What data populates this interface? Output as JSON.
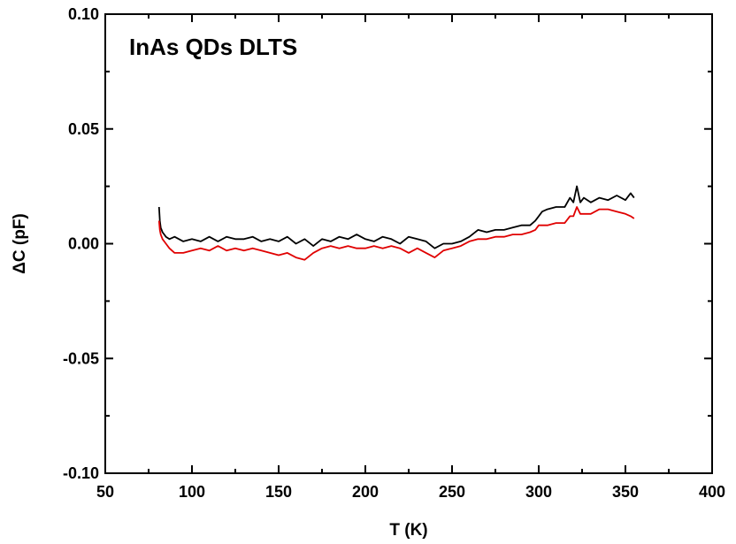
{
  "chart_data": {
    "type": "line",
    "title": "InAs QDs DLTS",
    "xlabel": "T (K)",
    "ylabel": "ΔC (pF)",
    "xlim": [
      50,
      400
    ],
    "ylim": [
      -0.1,
      0.1
    ],
    "xticks": [
      50,
      100,
      150,
      200,
      250,
      300,
      350,
      400
    ],
    "xtick_labels": [
      "50",
      "100",
      "150",
      "200",
      "250",
      "300",
      "350",
      "400"
    ],
    "yticks": [
      -0.1,
      -0.05,
      0.0,
      0.05,
      0.1
    ],
    "ytick_labels": [
      "-0.10",
      "-0.05",
      "0.00",
      "0.05",
      "0.10"
    ],
    "grid": false,
    "legend": "none",
    "series": [
      {
        "color": "#000000",
        "x": [
          81,
          81.5,
          82,
          83,
          85,
          87,
          90,
          95,
          100,
          105,
          110,
          115,
          120,
          125,
          130,
          135,
          140,
          145,
          150,
          155,
          160,
          165,
          170,
          175,
          180,
          185,
          190,
          195,
          200,
          205,
          210,
          215,
          220,
          225,
          230,
          235,
          240,
          245,
          250,
          255,
          260,
          265,
          270,
          275,
          280,
          285,
          290,
          295,
          298,
          300,
          302,
          305,
          310,
          315,
          318,
          320,
          322,
          324,
          326,
          330,
          335,
          340,
          345,
          350,
          353,
          355
        ],
        "y": [
          0.016,
          0.01,
          0.007,
          0.005,
          0.003,
          0.002,
          0.003,
          0.001,
          0.002,
          0.001,
          0.003,
          0.001,
          0.003,
          0.002,
          0.002,
          0.003,
          0.001,
          0.002,
          0.001,
          0.003,
          0.0,
          0.002,
          -0.001,
          0.002,
          0.001,
          0.003,
          0.002,
          0.004,
          0.002,
          0.001,
          0.003,
          0.002,
          0.0,
          0.003,
          0.002,
          0.001,
          -0.002,
          0.0,
          0.0,
          0.001,
          0.003,
          0.006,
          0.005,
          0.006,
          0.006,
          0.007,
          0.008,
          0.008,
          0.01,
          0.012,
          0.014,
          0.015,
          0.016,
          0.016,
          0.02,
          0.018,
          0.025,
          0.018,
          0.02,
          0.018,
          0.02,
          0.019,
          0.021,
          0.019,
          0.022,
          0.02
        ]
      },
      {
        "color": "#e00000",
        "x": [
          81,
          81.5,
          82,
          83,
          85,
          87,
          90,
          95,
          100,
          105,
          110,
          115,
          120,
          125,
          130,
          135,
          140,
          145,
          150,
          155,
          160,
          165,
          170,
          175,
          180,
          185,
          190,
          195,
          200,
          205,
          210,
          215,
          220,
          225,
          230,
          235,
          240,
          245,
          250,
          255,
          260,
          265,
          270,
          275,
          280,
          285,
          290,
          295,
          298,
          300,
          302,
          305,
          310,
          315,
          318,
          320,
          322,
          324,
          326,
          330,
          335,
          340,
          345,
          350,
          353,
          355
        ],
        "y": [
          0.01,
          0.006,
          0.004,
          0.002,
          0.0,
          -0.002,
          -0.004,
          -0.004,
          -0.003,
          -0.002,
          -0.003,
          -0.001,
          -0.003,
          -0.002,
          -0.003,
          -0.002,
          -0.003,
          -0.004,
          -0.005,
          -0.004,
          -0.006,
          -0.007,
          -0.004,
          -0.002,
          -0.001,
          -0.002,
          -0.001,
          -0.002,
          -0.002,
          -0.001,
          -0.002,
          -0.001,
          -0.002,
          -0.004,
          -0.002,
          -0.004,
          -0.006,
          -0.003,
          -0.002,
          -0.001,
          0.001,
          0.002,
          0.002,
          0.003,
          0.003,
          0.004,
          0.004,
          0.005,
          0.006,
          0.008,
          0.008,
          0.008,
          0.009,
          0.009,
          0.012,
          0.012,
          0.016,
          0.013,
          0.013,
          0.013,
          0.015,
          0.015,
          0.014,
          0.013,
          0.012,
          0.011
        ]
      }
    ]
  }
}
